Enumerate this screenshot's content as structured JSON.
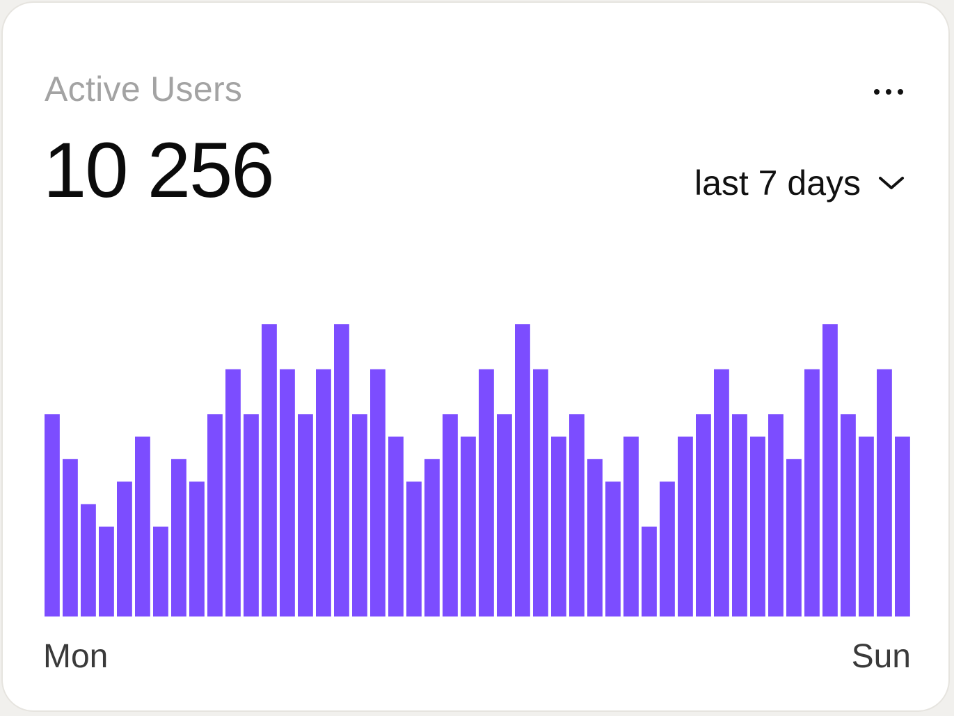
{
  "card": {
    "title": "Active Users",
    "value": "10 256",
    "range_label": "last 7 days",
    "more_icon": "more-horizontal-icon",
    "range_icon": "chevron-down-icon"
  },
  "colors": {
    "bar": "#7c4dff",
    "title": "#a3a3a3",
    "value": "#0b0b0b"
  },
  "chart_data": {
    "type": "bar",
    "title": "",
    "xlabel": "",
    "ylabel": "",
    "x_tick_labels": [
      "Mon",
      "Sun"
    ],
    "ylim": [
      0,
      13
    ],
    "grid": false,
    "legend": "none",
    "values": [
      9,
      7,
      5,
      4,
      6,
      8,
      4,
      7,
      6,
      9,
      11,
      9,
      13,
      11,
      9,
      11,
      13,
      9,
      11,
      8,
      6,
      7,
      9,
      8,
      11,
      9,
      13,
      11,
      8,
      9,
      7,
      6,
      8,
      4,
      6,
      8,
      9,
      11,
      9,
      8,
      9,
      7,
      11,
      13,
      9,
      8,
      11,
      8
    ]
  }
}
